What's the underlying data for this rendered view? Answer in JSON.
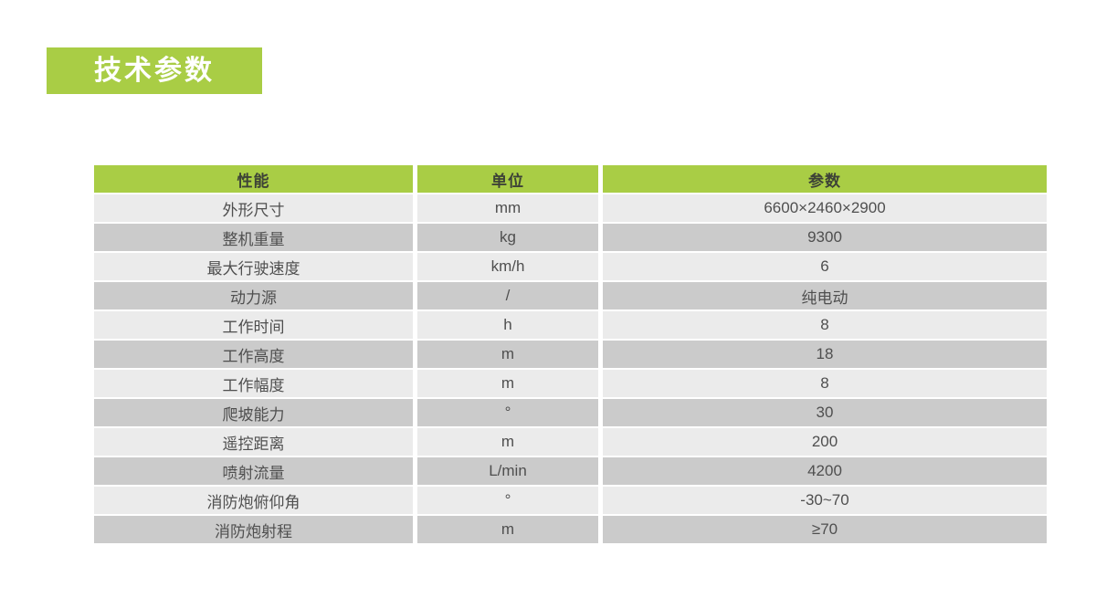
{
  "title": {
    "text": "技术参数",
    "bg_color": "#a9cd45",
    "text_color": "#ffffff"
  },
  "table": {
    "headers": {
      "performance": "性能",
      "unit": "单位",
      "parameter": "参数"
    },
    "colors": {
      "header_bg": "#a9cd45",
      "header_text": "#3d4237",
      "row_light_bg": "#ebebeb",
      "row_dark_bg": "#cbcbcb",
      "body_text": "#4f4f4f"
    },
    "rows": [
      {
        "name": "外形尺寸",
        "unit": "mm",
        "value": "6600×2460×2900"
      },
      {
        "name": "整机重量",
        "unit": "kg",
        "value": "9300"
      },
      {
        "name": "最大行驶速度",
        "unit": "km/h",
        "value": "6"
      },
      {
        "name": "动力源",
        "unit": "/",
        "value": "纯电动"
      },
      {
        "name": "工作时间",
        "unit": "h",
        "value": "8"
      },
      {
        "name": "工作高度",
        "unit": "m",
        "value": "18"
      },
      {
        "name": "工作幅度",
        "unit": "m",
        "value": "8"
      },
      {
        "name": "爬坡能力",
        "unit": "°",
        "value": "30"
      },
      {
        "name": "遥控距离",
        "unit": "m",
        "value": "200"
      },
      {
        "name": "喷射流量",
        "unit": "L/min",
        "value": "4200"
      },
      {
        "name": "消防炮俯仰角",
        "unit": "°",
        "value": "-30~70"
      },
      {
        "name": "消防炮射程",
        "unit": "m",
        "value": "≥70"
      }
    ]
  }
}
